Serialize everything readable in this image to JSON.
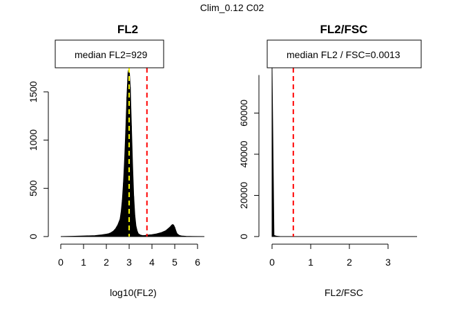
{
  "figure_title": "Clim_0.12 C02",
  "colors": {
    "bars": "#000000",
    "median_line": "#ffff00",
    "ref_line": "#ff0000",
    "legend_border": "#000000"
  },
  "chart_data": [
    {
      "type": "bar",
      "title": "FL2",
      "xlabel": "log10(FL2)",
      "ylabel": "",
      "xlim": [
        0,
        6.3
      ],
      "ylim": [
        0,
        1750
      ],
      "xticks": [
        "0",
        "1",
        "2",
        "3",
        "4",
        "5",
        "6"
      ],
      "xtick_values": [
        0,
        1,
        2,
        3,
        4,
        5,
        6
      ],
      "yticks": [
        "0",
        "500",
        "1000",
        "1500"
      ],
      "ytick_values": [
        0,
        500,
        1000,
        1500
      ],
      "legend": "median FL2=929",
      "legend_position": "top",
      "median_line_x": 3.0,
      "ref_line_x": 3.78,
      "histogram": {
        "x": [
          0.0,
          0.5,
          1.0,
          1.5,
          1.8,
          2.0,
          2.1,
          2.2,
          2.3,
          2.4,
          2.5,
          2.6,
          2.65,
          2.7,
          2.75,
          2.8,
          2.85,
          2.9,
          2.95,
          3.0,
          3.05,
          3.1,
          3.15,
          3.2,
          3.25,
          3.3,
          3.35,
          3.4,
          3.5,
          3.6,
          3.7,
          3.8,
          4.0,
          4.2,
          4.4,
          4.6,
          4.7,
          4.8,
          4.85,
          4.9,
          4.95,
          5.0,
          5.05,
          5.1,
          5.2,
          5.3,
          5.5,
          5.8,
          6.3
        ],
        "y": [
          0,
          3,
          6,
          10,
          18,
          25,
          30,
          40,
          55,
          80,
          120,
          180,
          260,
          380,
          560,
          800,
          1100,
          1450,
          1700,
          1750,
          1550,
          1150,
          750,
          420,
          220,
          110,
          60,
          30,
          15,
          10,
          12,
          15,
          20,
          28,
          40,
          60,
          80,
          100,
          115,
          125,
          120,
          95,
          60,
          30,
          12,
          6,
          3,
          1,
          0
        ]
      }
    },
    {
      "type": "bar",
      "title": "FL2/FSC",
      "xlabel": "FL2/FSC",
      "ylabel": "",
      "xlim": [
        0,
        3.75
      ],
      "ylim": [
        0,
        82000
      ],
      "xticks": [
        "0",
        "1",
        "2",
        "3"
      ],
      "xtick_values": [
        0,
        1,
        2,
        3
      ],
      "yticks": [
        "0",
        "20000",
        "40000",
        "60000"
      ],
      "ytick_values": [
        0,
        20000,
        40000,
        60000
      ],
      "legend": "median FL2 / FSC=0.0013",
      "legend_position": "top",
      "ref_line_x": 0.55,
      "histogram": {
        "x": [
          0.0,
          0.05,
          0.1,
          0.15,
          0.2,
          0.3,
          1.0,
          2.0,
          3.0,
          3.75
        ],
        "y": [
          82000,
          600,
          250,
          120,
          60,
          20,
          5,
          2,
          1,
          0
        ]
      }
    }
  ]
}
